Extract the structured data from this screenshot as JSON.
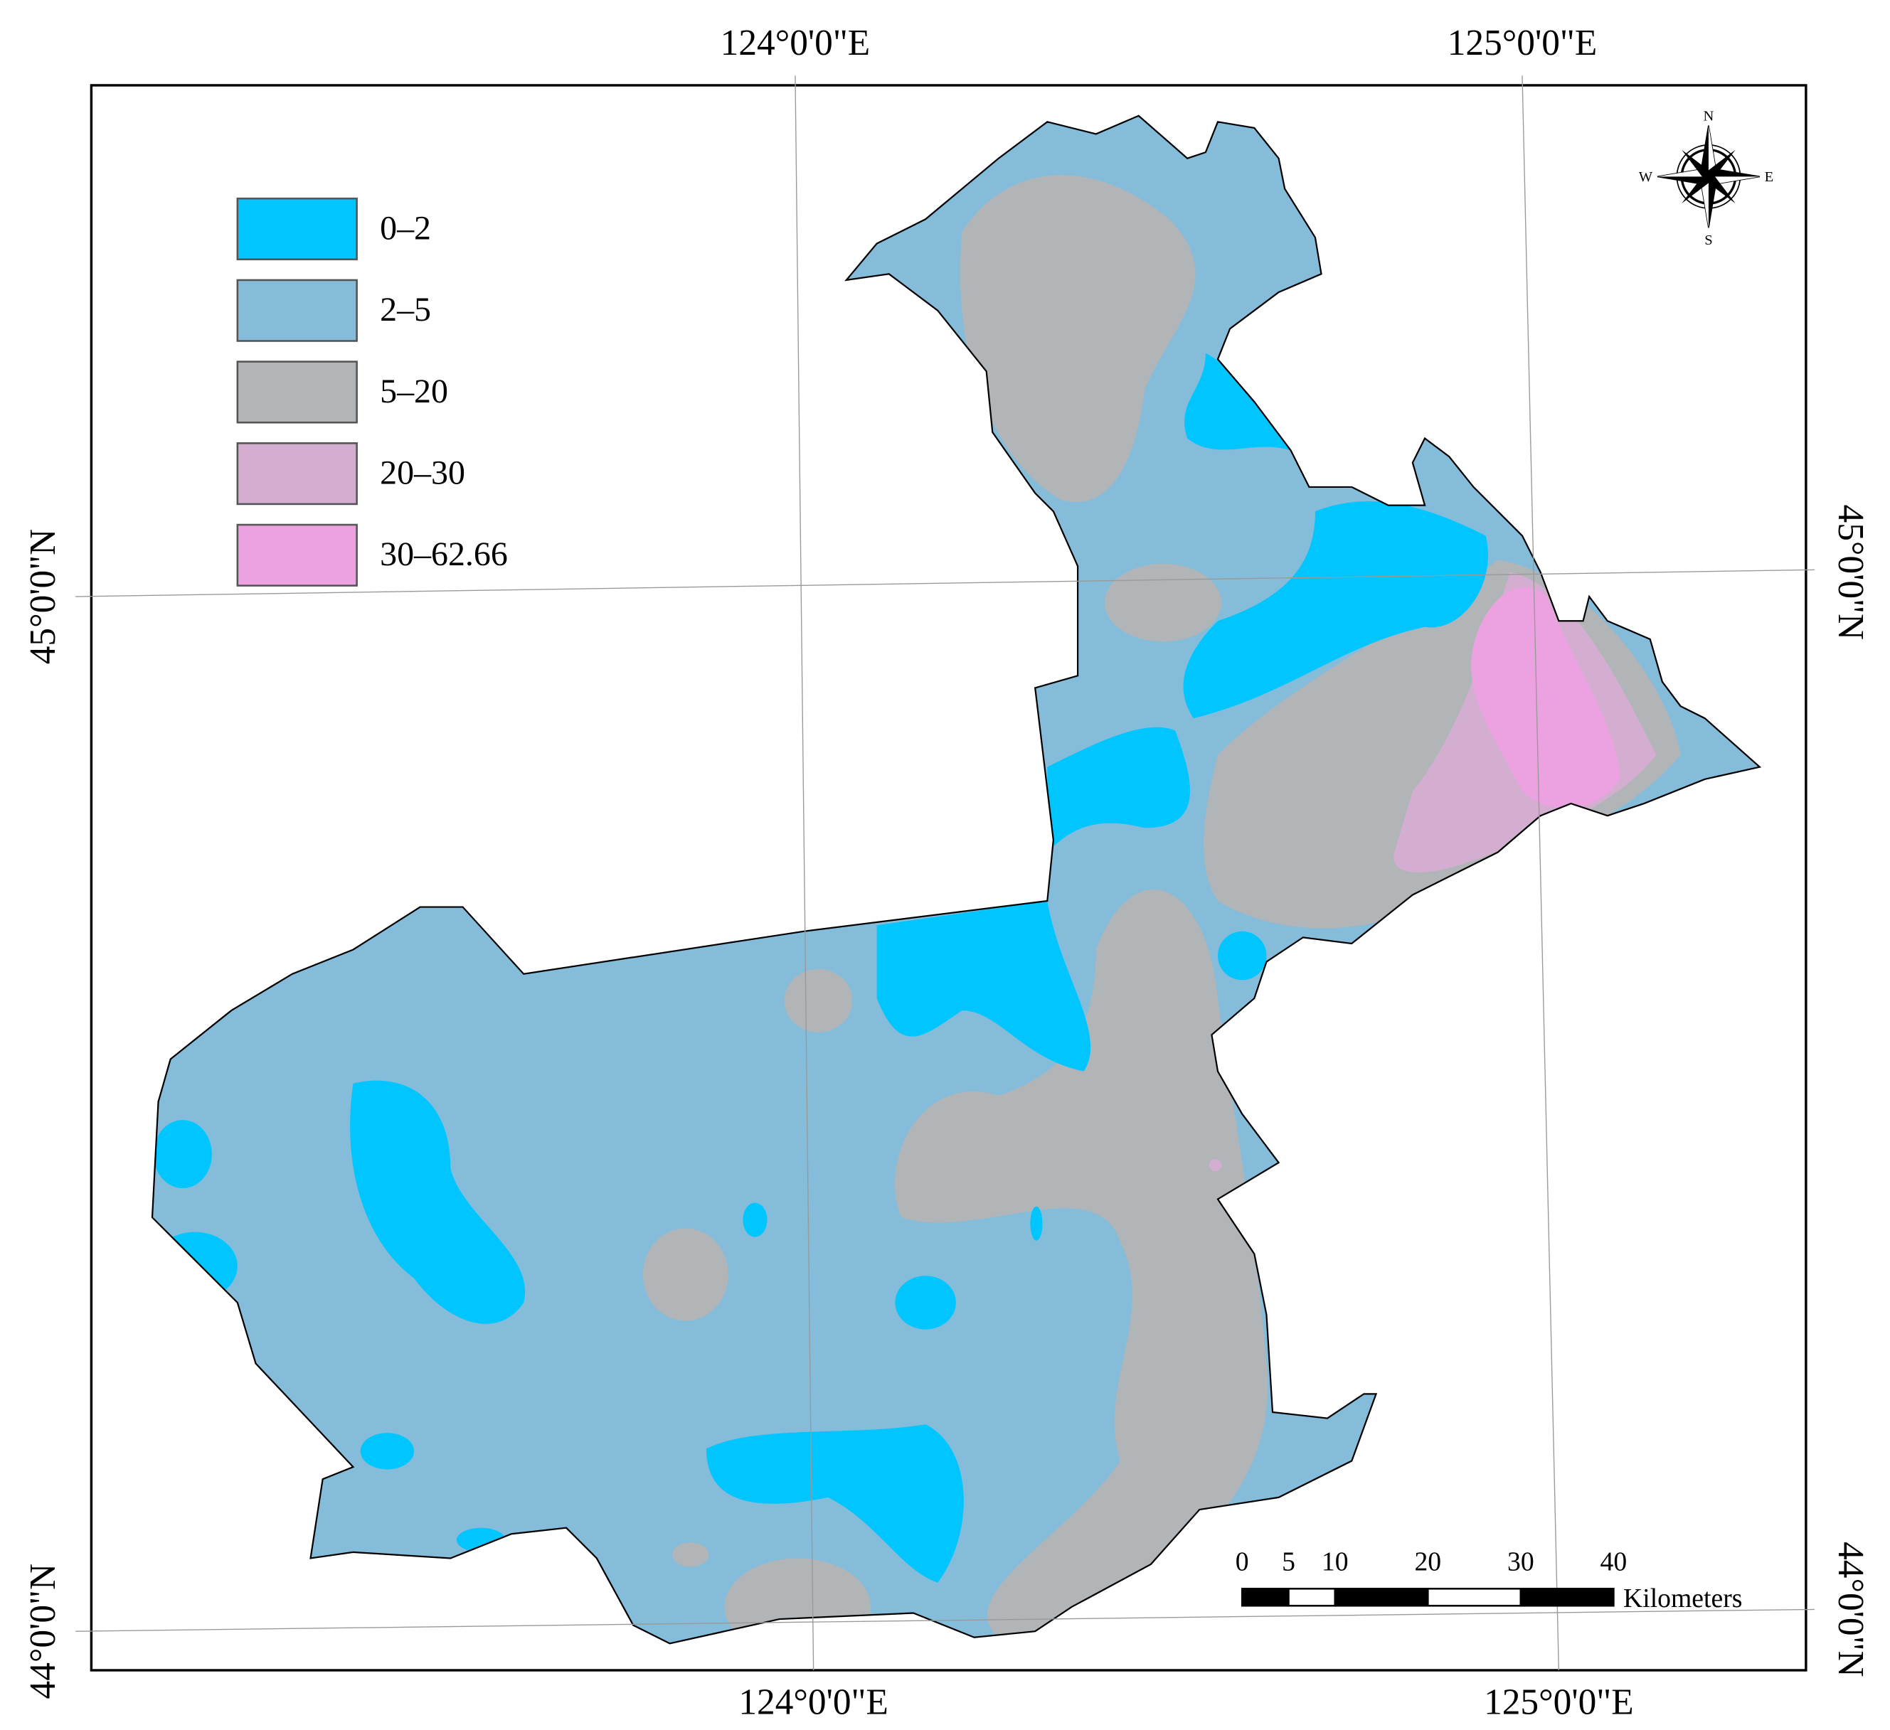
{
  "map": {
    "graticule": {
      "top": [
        "124°0'0\"E",
        "125°0'0\"E"
      ],
      "bottom": [
        "124°0'0\"E",
        "125°0'0\"E"
      ],
      "left": [
        "45°0'0\"N",
        "44°0'0\"N"
      ],
      "right": [
        "45°0'0\"N",
        "44°0'0\"N"
      ]
    },
    "legend": [
      {
        "label": "0–2",
        "color": "#00c5ff"
      },
      {
        "label": "2–5",
        "color": "#85bcd9"
      },
      {
        "label": "5–20",
        "color": "#b2b5b8"
      },
      {
        "label": "20–30",
        "color": "#d4aed0"
      },
      {
        "label": "30–62.66",
        "color": "#eca2e0"
      }
    ],
    "compass": {
      "n": "N",
      "s": "S",
      "e": "E",
      "w": "W"
    },
    "scale_bar": {
      "ticks": [
        0,
        5,
        10,
        20,
        30,
        40
      ],
      "unit": "Kilometers"
    }
  }
}
